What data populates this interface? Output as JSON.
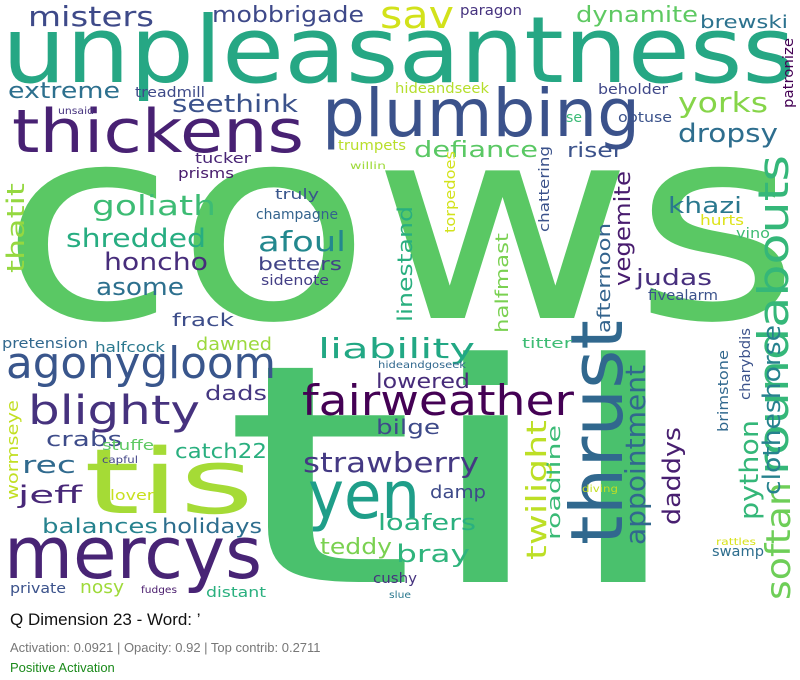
{
  "wordcloud": {
    "words": [
      {
        "text": "cows",
        "color": "#5ac864"
      },
      {
        "text": "til",
        "color": "#4ac16d"
      },
      {
        "text": "unpleasantness",
        "color": "#26a784"
      },
      {
        "text": "mercys",
        "color": "#482475"
      },
      {
        "text": "tis",
        "color": "#a5db36"
      },
      {
        "text": "plumbing",
        "color": "#3b528b"
      },
      {
        "text": "thickens",
        "color": "#482173"
      },
      {
        "text": "thrust",
        "color": "#31688e"
      },
      {
        "text": "yen",
        "color": "#1f9e89"
      },
      {
        "text": "agonygloom",
        "color": "#39568c"
      },
      {
        "text": "fairweather",
        "color": "#440154"
      },
      {
        "text": "roundabouts",
        "color": "#35b779"
      },
      {
        "text": "blighty",
        "color": "#46327e"
      },
      {
        "text": "sav",
        "color": "#d2e21b"
      },
      {
        "text": "softan",
        "color": "#6ece58"
      },
      {
        "text": "appointment",
        "color": "#31688e"
      },
      {
        "text": "strawberry",
        "color": "#443983"
      },
      {
        "text": "twilight",
        "color": "#bddf26"
      },
      {
        "text": "misters",
        "color": "#3e4a89"
      },
      {
        "text": "yorks",
        "color": "#86d549"
      },
      {
        "text": "dropsy",
        "color": "#2e6e8e"
      },
      {
        "text": "liability",
        "color": "#22a884"
      },
      {
        "text": "python",
        "color": "#35b779"
      },
      {
        "text": "clotheshorse",
        "color": "#26828e"
      },
      {
        "text": "daddys",
        "color": "#481f70"
      },
      {
        "text": "goliath",
        "color": "#3dbc74"
      },
      {
        "text": "shredded",
        "color": "#27ad81"
      },
      {
        "text": "afoul",
        "color": "#23888e"
      },
      {
        "text": "honcho",
        "color": "#472d7b"
      },
      {
        "text": "asome",
        "color": "#2d708e"
      },
      {
        "text": "seethink",
        "color": "#3b528b"
      },
      {
        "text": "extreme",
        "color": "#2d708e"
      },
      {
        "text": "dynamite",
        "color": "#5ec962"
      },
      {
        "text": "mobbrigade",
        "color": "#3e4989"
      },
      {
        "text": "brewski",
        "color": "#2c728e"
      },
      {
        "text": "defiance",
        "color": "#5ac864"
      },
      {
        "text": "riser",
        "color": "#3b528b"
      },
      {
        "text": "vegemite",
        "color": "#481c6e"
      },
      {
        "text": "khazi",
        "color": "#2a788e"
      },
      {
        "text": "judas",
        "color": "#472f7d"
      },
      {
        "text": "linestand",
        "color": "#29af7f"
      },
      {
        "text": "halfmast",
        "color": "#7ad151"
      },
      {
        "text": "afternoon",
        "color": "#33638d"
      },
      {
        "text": "thatit",
        "color": "#95d840"
      },
      {
        "text": "bray",
        "color": "#2fb47c"
      },
      {
        "text": "loafers",
        "color": "#2ab07f"
      },
      {
        "text": "teddy",
        "color": "#7ad151"
      },
      {
        "text": "holidays",
        "color": "#2e6e8e"
      },
      {
        "text": "balances",
        "color": "#26828e"
      },
      {
        "text": "jeff",
        "color": "#482878"
      },
      {
        "text": "rec",
        "color": "#306a8e"
      },
      {
        "text": "crabs",
        "color": "#3e4c8a"
      },
      {
        "text": "dads",
        "color": "#453781"
      },
      {
        "text": "catch22",
        "color": "#29af7f"
      },
      {
        "text": "lowered",
        "color": "#472c7a"
      },
      {
        "text": "bilge",
        "color": "#3e4a89"
      },
      {
        "text": "dawned",
        "color": "#9bd93c"
      },
      {
        "text": "frack",
        "color": "#3d4d8a"
      },
      {
        "text": "roadline",
        "color": "#3aba76"
      },
      {
        "text": "damp",
        "color": "#3e4a89"
      },
      {
        "text": "nosy",
        "color": "#9fda3a"
      },
      {
        "text": "cushy",
        "color": "#46337f"
      },
      {
        "text": "wormseye",
        "color": "#c2df23"
      },
      {
        "text": "champagne",
        "color": "#33638d"
      },
      {
        "text": "betters",
        "color": "#414487"
      },
      {
        "text": "truly",
        "color": "#39568c"
      },
      {
        "text": "sidenote",
        "color": "#433e85"
      },
      {
        "text": "tucker",
        "color": "#482475"
      },
      {
        "text": "prisms",
        "color": "#481b6d"
      },
      {
        "text": "treadmill",
        "color": "#3e4a89"
      },
      {
        "text": "hideandseek",
        "color": "#b5de2b"
      },
      {
        "text": "beholder",
        "color": "#3f4788"
      },
      {
        "text": "obtuse",
        "color": "#3b528b"
      },
      {
        "text": "patronize",
        "color": "#440154"
      },
      {
        "text": "paragon",
        "color": "#46337f"
      },
      {
        "text": "trumpets",
        "color": "#b8de29"
      },
      {
        "text": "willin",
        "color": "#9fda3a"
      },
      {
        "text": "chattering",
        "color": "#3b528b"
      },
      {
        "text": "torpedoes",
        "color": "#d2e21b"
      },
      {
        "text": "hurts",
        "color": "#dde318"
      },
      {
        "text": "vino",
        "color": "#3fbc73"
      },
      {
        "text": "fivealarm",
        "color": "#3b528b"
      },
      {
        "text": "se",
        "color": "#3aba76"
      },
      {
        "text": "unsaid",
        "color": "#46337f"
      },
      {
        "text": "pretension",
        "color": "#31688e"
      },
      {
        "text": "halfcock",
        "color": "#2a788e"
      },
      {
        "text": "titter",
        "color": "#3dbc74"
      },
      {
        "text": "hideandgoseek",
        "color": "#31688e"
      },
      {
        "text": "brimstone",
        "color": "#31688e"
      },
      {
        "text": "charybdis",
        "color": "#3b528b"
      },
      {
        "text": "stuffe",
        "color": "#5ec962"
      },
      {
        "text": "capful",
        "color": "#414487"
      },
      {
        "text": "lover",
        "color": "#c8e020"
      },
      {
        "text": "diving",
        "color": "#c2df23"
      },
      {
        "text": "rattles",
        "color": "#d8e219"
      },
      {
        "text": "swamp",
        "color": "#2e6e8e"
      },
      {
        "text": "private",
        "color": "#3b528b"
      },
      {
        "text": "fudges",
        "color": "#481a6c"
      },
      {
        "text": "distant",
        "color": "#2ab07f"
      },
      {
        "text": "slue",
        "color": "#2a788e"
      }
    ]
  },
  "caption": {
    "title": "Q Dimension 23 - Word: ’",
    "stats": "Activation: 0.0921 | Opacity: 0.92 | Top contrib: 0.2711",
    "polarity": "Positive Activation",
    "polarity_color": "#1a8a1a"
  }
}
